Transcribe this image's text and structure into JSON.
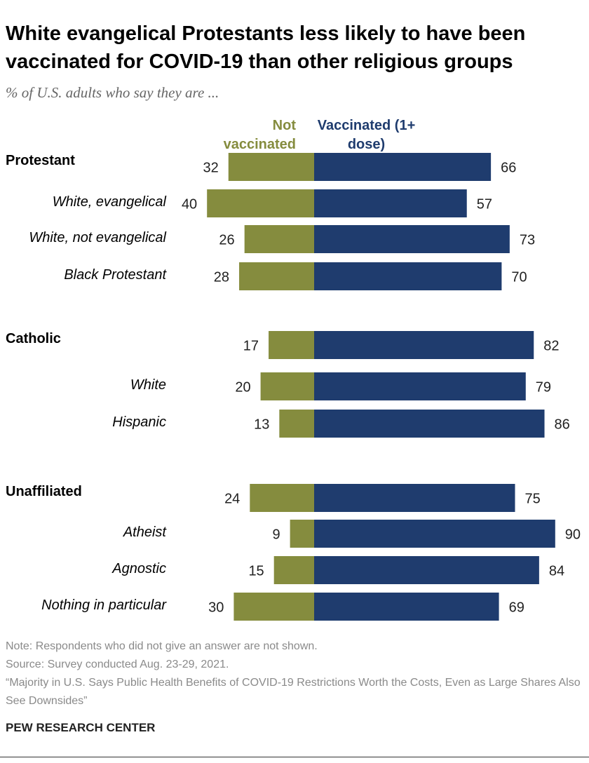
{
  "chart_data": {
    "type": "diverging_bar",
    "title": "White evangelical Protestants less likely to have been vaccinated for COVID-19 than other religious groups",
    "subtitle": "% of U.S. adults who say they are ...",
    "series": [
      {
        "name": "Not vaccinated",
        "color": "#858c3e"
      },
      {
        "name": "Vaccinated (1+ dose)",
        "color": "#1f3c6e"
      }
    ],
    "groups": [
      {
        "name": "Protestant",
        "values": [
          32,
          66
        ],
        "subgroups": [
          {
            "name": "White, evangelical",
            "values": [
              40,
              57
            ]
          },
          {
            "name": "White, not evangelical",
            "values": [
              26,
              73
            ]
          },
          {
            "name": "Black Protestant",
            "values": [
              28,
              70
            ]
          }
        ]
      },
      {
        "name": "Catholic",
        "values": [
          17,
          82
        ],
        "subgroups": [
          {
            "name": "White",
            "values": [
              20,
              79
            ]
          },
          {
            "name": "Hispanic",
            "values": [
              13,
              86
            ]
          }
        ]
      },
      {
        "name": "Unaffiliated",
        "values": [
          24,
          75
        ],
        "subgroups": [
          {
            "name": "Atheist",
            "values": [
              9,
              90
            ]
          },
          {
            "name": "Agnostic",
            "values": [
              15,
              84
            ]
          },
          {
            "name": "Nothing in particular",
            "values": [
              30,
              69
            ]
          }
        ]
      }
    ],
    "notes": [
      "Note: Respondents who did not give an answer are not shown.",
      "Source: Survey conducted Aug. 23-29, 2021.",
      "“Majority in U.S. Says Public Health Benefits of COVID-19 Restrictions Worth the Costs, Even as Large Shares Also See Downsides”"
    ],
    "credit": "PEW RESEARCH CENTER"
  }
}
